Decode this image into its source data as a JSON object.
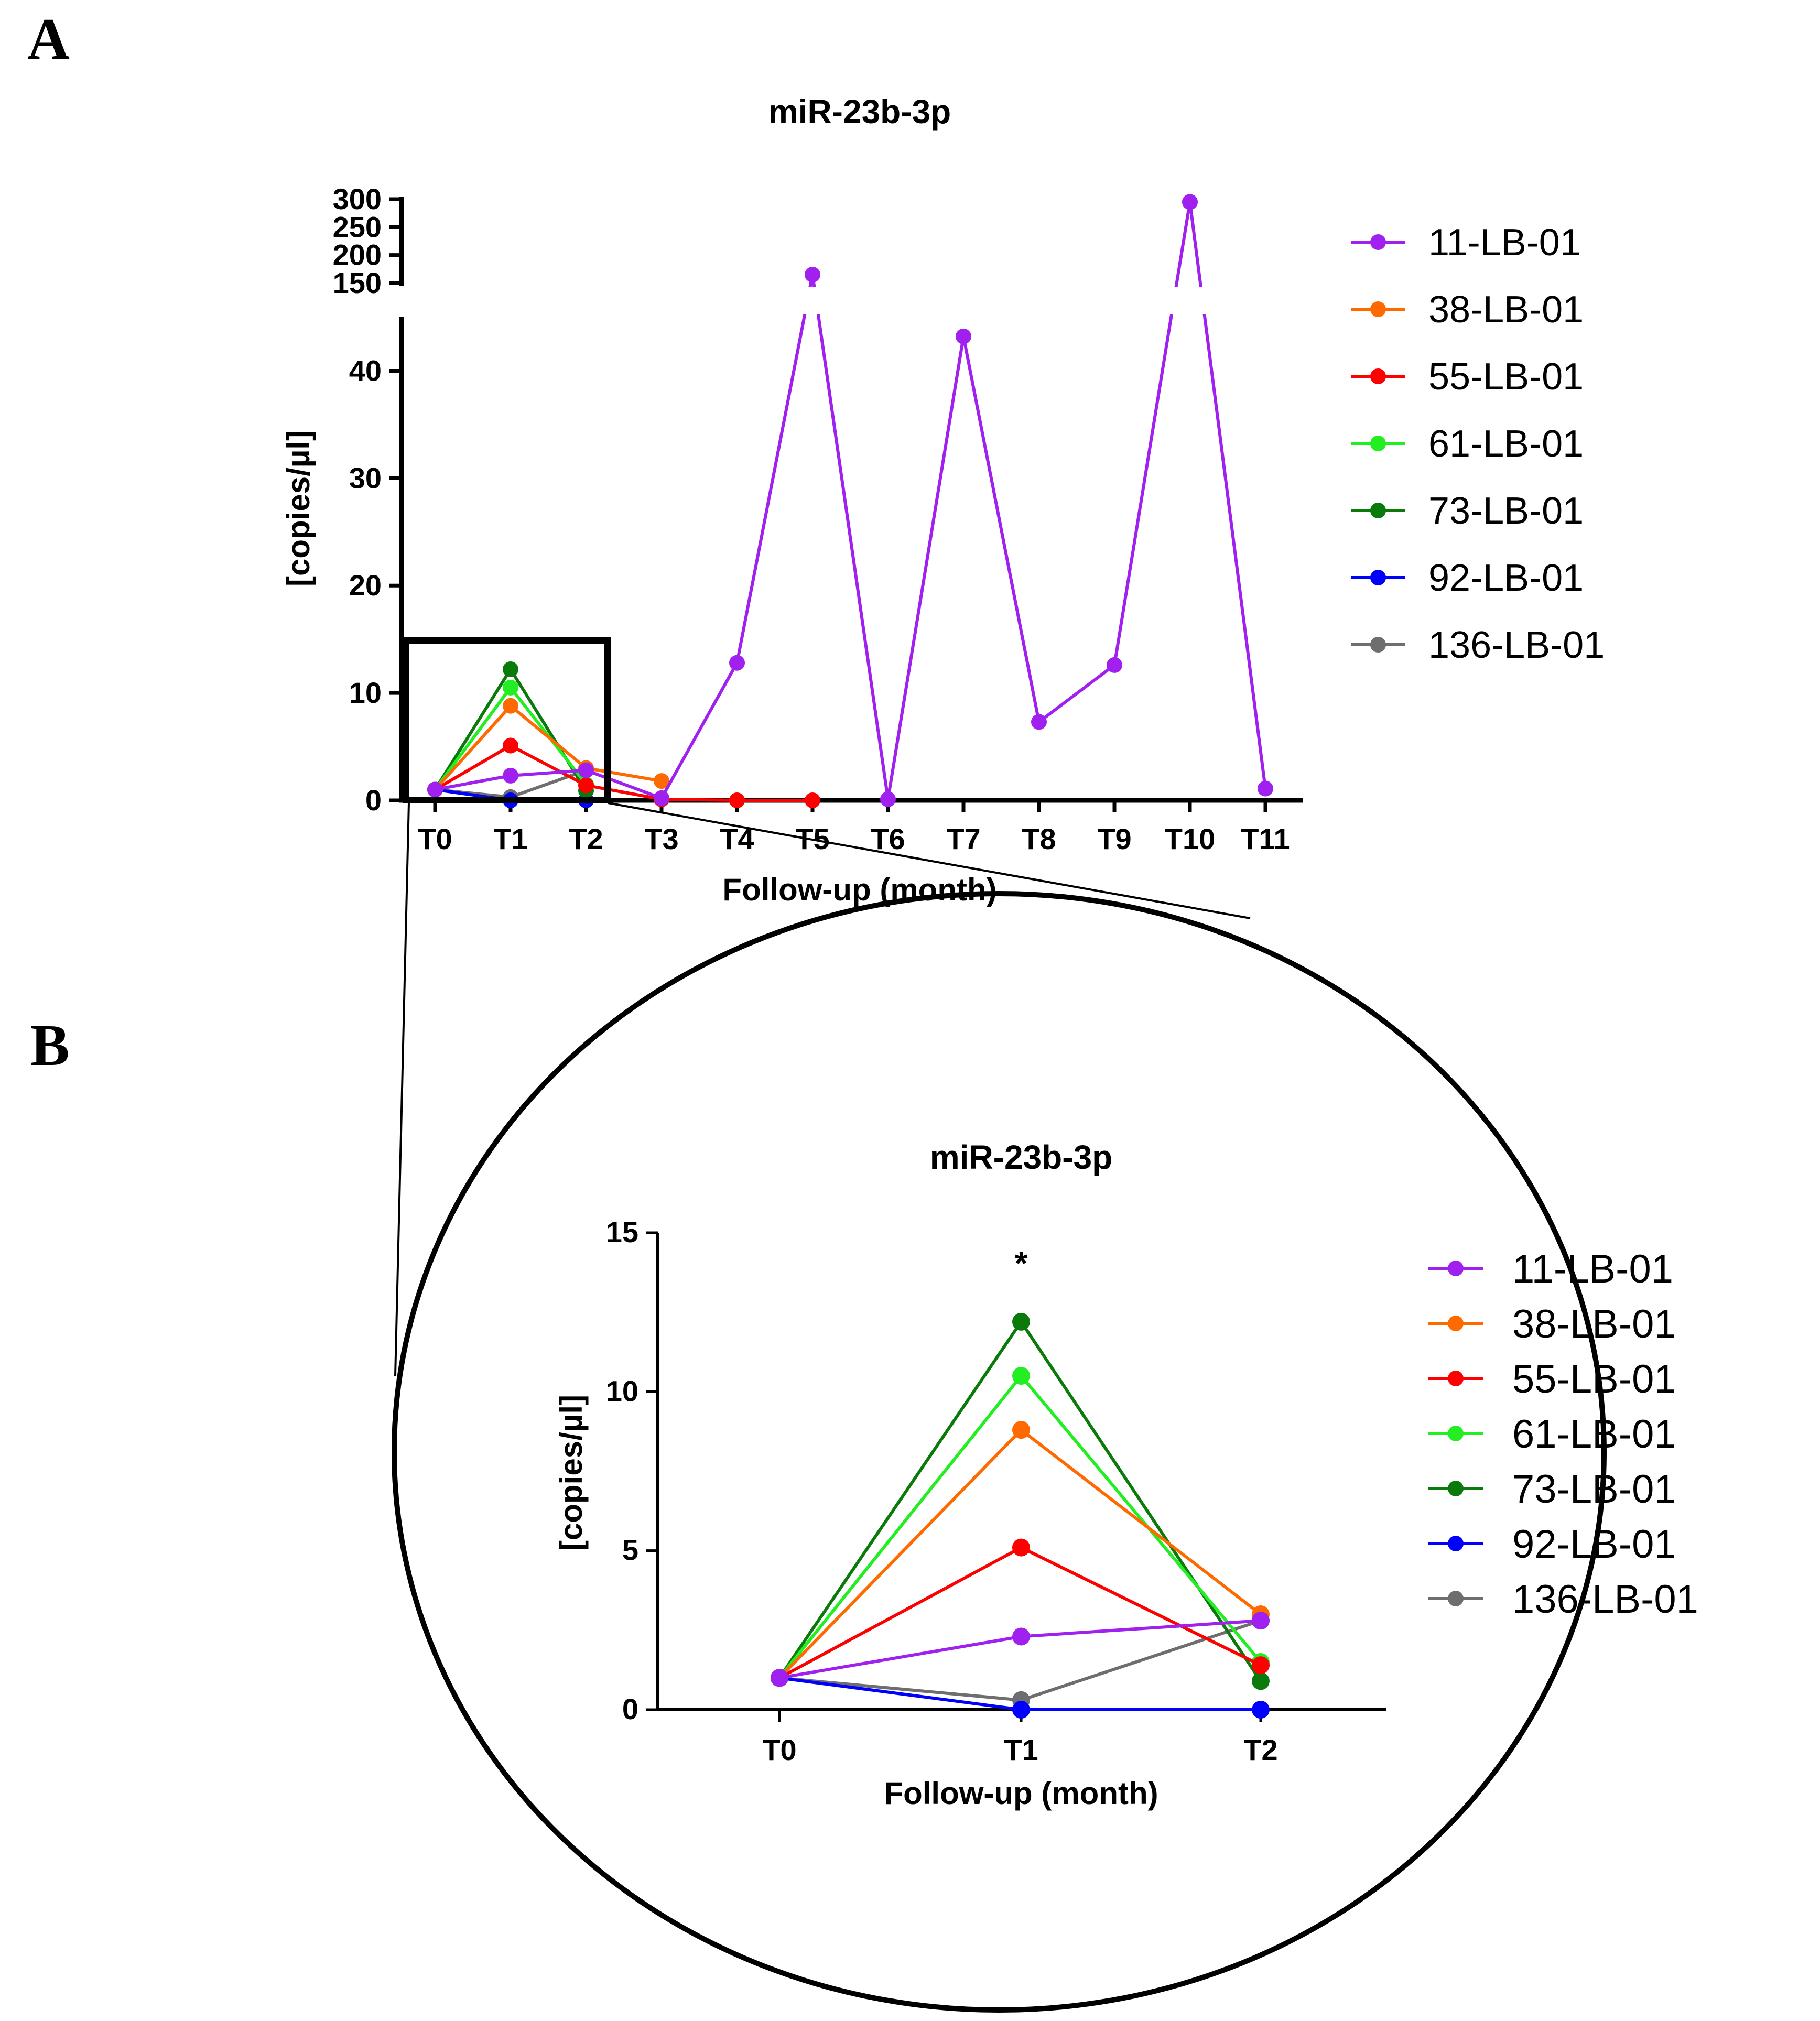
{
  "panels": {
    "a": "A",
    "b": "B"
  },
  "colors": {
    "11-LB-01": "#a020f0",
    "38-LB-01": "#ff6a00",
    "55-LB-01": "#ff0000",
    "61-LB-01": "#22ee22",
    "73-LB-01": "#0a7a0a",
    "92-LB-01": "#0000ff",
    "136-LB-01": "#6e6e6e",
    "axis": "#000000"
  },
  "chart_data": [
    {
      "id": "panel-a",
      "type": "line",
      "title": "miR-23b-3p",
      "xlabel": "Follow-up (month)",
      "ylabel": "[copies/µl]",
      "categories": [
        "T0",
        "T1",
        "T2",
        "T3",
        "T4",
        "T5",
        "T6",
        "T7",
        "T8",
        "T9",
        "T10",
        "T11"
      ],
      "y_axis": "broken",
      "y_lower_range": [
        0,
        45
      ],
      "y_lower_ticks": [
        0,
        10,
        20,
        30,
        40
      ],
      "y_upper_range": [
        150,
        300
      ],
      "y_upper_ticks": [
        150,
        200,
        250,
        300
      ],
      "grid": false,
      "legend_position": "right",
      "series": [
        {
          "name": "11-LB-01",
          "values": [
            1.0,
            2.3,
            2.8,
            0.2,
            12.8,
            165,
            0.1,
            43.2,
            7.3,
            12.6,
            295,
            1.1
          ]
        },
        {
          "name": "38-LB-01",
          "values": [
            1.0,
            8.8,
            3.0,
            1.8,
            null,
            null,
            null,
            null,
            null,
            null,
            null,
            null
          ]
        },
        {
          "name": "55-LB-01",
          "values": [
            1.0,
            5.1,
            1.4,
            0.1,
            0.0,
            0.0,
            null,
            null,
            null,
            null,
            null,
            null
          ]
        },
        {
          "name": "61-LB-01",
          "values": [
            1.0,
            10.5,
            1.5,
            null,
            null,
            null,
            null,
            null,
            null,
            null,
            null,
            null
          ]
        },
        {
          "name": "73-LB-01",
          "values": [
            1.0,
            12.2,
            0.9,
            null,
            null,
            null,
            null,
            null,
            null,
            null,
            null,
            null
          ]
        },
        {
          "name": "92-LB-01",
          "values": [
            1.0,
            0.0,
            0.0,
            null,
            null,
            null,
            null,
            null,
            null,
            null,
            null,
            null
          ]
        },
        {
          "name": "136-LB-01",
          "values": [
            1.0,
            0.3,
            2.8,
            null,
            null,
            null,
            null,
            null,
            null,
            null,
            null,
            null
          ]
        }
      ]
    },
    {
      "id": "panel-b",
      "type": "line",
      "title": "miR-23b-3p",
      "xlabel": "Follow-up (month)",
      "ylabel": "[copies/µl]",
      "categories": [
        "T0",
        "T1",
        "T2"
      ],
      "ylim": [
        0,
        15
      ],
      "y_ticks": [
        0,
        5,
        10,
        15
      ],
      "grid": false,
      "legend_position": "right",
      "annotation": {
        "text": "*",
        "category": "T1"
      },
      "series": [
        {
          "name": "11-LB-01",
          "values": [
            1.0,
            2.3,
            2.8
          ]
        },
        {
          "name": "38-LB-01",
          "values": [
            1.0,
            8.8,
            3.0
          ]
        },
        {
          "name": "55-LB-01",
          "values": [
            1.0,
            5.1,
            1.4
          ]
        },
        {
          "name": "61-LB-01",
          "values": [
            1.0,
            10.5,
            1.5
          ]
        },
        {
          "name": "73-LB-01",
          "values": [
            1.0,
            12.2,
            0.9
          ]
        },
        {
          "name": "92-LB-01",
          "values": [
            1.0,
            0.0,
            0.0
          ]
        },
        {
          "name": "136-LB-01",
          "values": [
            1.0,
            0.3,
            2.8
          ]
        }
      ]
    }
  ]
}
